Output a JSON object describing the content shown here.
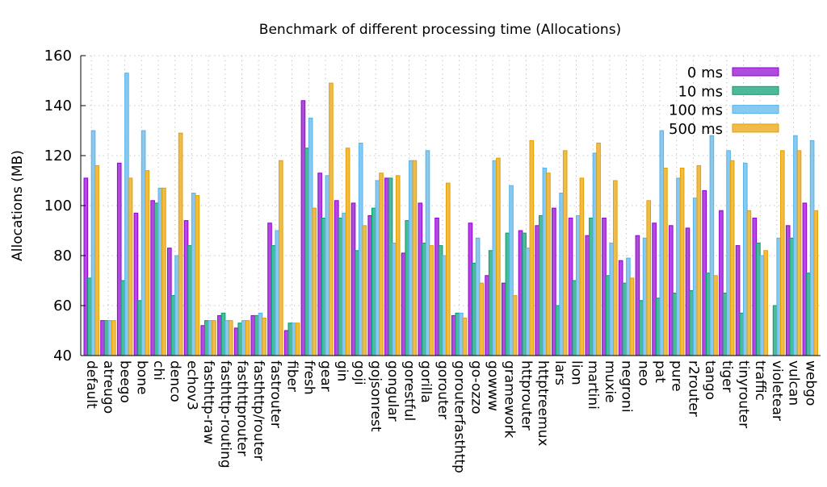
{
  "chart_data": {
    "type": "bar",
    "title": "Benchmark of different processing time (Allocations)",
    "xlabel": "",
    "ylabel": "Allocations (MB)",
    "ylim": [
      40,
      160
    ],
    "yticks": [
      40,
      60,
      80,
      100,
      120,
      140,
      160
    ],
    "grid": true,
    "legend_position": "top-right",
    "categories": [
      "default",
      "atreugo",
      "beego",
      "bone",
      "chi",
      "denco",
      "echov3",
      "fasthttp-raw",
      "fasthttp-routing",
      "fasthttprouter",
      "fasthttp/router",
      "fastrouter",
      "fiber",
      "fresh",
      "gear",
      "gin",
      "goji",
      "gojsonrest",
      "gongular",
      "gorestful",
      "gorilla",
      "gorouter",
      "gorouterfasthttp",
      "go-ozzo",
      "gowww",
      "gramework",
      "httprouter",
      "httptreemux",
      "lars",
      "lion",
      "martini",
      "muxie",
      "negroni",
      "neo",
      "pat",
      "pure",
      "r2router",
      "tango",
      "tiger",
      "tinyrouter",
      "traffic",
      "violetear",
      "vulcan",
      "webgo"
    ],
    "series": [
      {
        "name": "0 ms",
        "color": "#b14be0",
        "stroke": "#9400d3",
        "values": [
          111,
          54,
          117,
          97,
          102,
          83,
          94,
          52,
          56,
          51,
          56,
          93,
          50,
          142,
          113,
          102,
          101,
          96,
          111,
          81,
          101,
          95,
          56,
          93,
          72,
          69,
          90,
          92,
          99,
          95,
          88,
          95,
          78,
          88,
          93,
          92,
          91,
          106,
          98,
          84,
          95,
          null,
          92,
          101
        ]
      },
      {
        "name": "10 ms",
        "color": "#4dbb99",
        "stroke": "#009e73",
        "values": [
          71,
          54,
          70,
          62,
          101,
          64,
          84,
          54,
          57,
          53,
          56,
          84,
          53,
          123,
          95,
          95,
          82,
          99,
          111,
          94,
          85,
          84,
          57,
          77,
          82,
          89,
          89,
          96,
          60,
          70,
          95,
          72,
          69,
          62,
          63,
          65,
          66,
          73,
          65,
          57,
          85,
          60,
          87,
          73
        ]
      },
      {
        "name": "100 ms",
        "color": "#89c9ef",
        "stroke": "#56b4e9",
        "values": [
          130,
          54,
          153,
          130,
          107,
          80,
          105,
          54,
          54,
          54,
          57,
          90,
          53,
          135,
          112,
          97,
          125,
          110,
          85,
          118,
          122,
          80,
          57,
          87,
          118,
          108,
          83,
          115,
          105,
          96,
          121,
          85,
          79,
          87,
          130,
          111,
          103,
          128,
          122,
          117,
          80,
          87,
          128,
          126
        ]
      },
      {
        "name": "500 ms",
        "color": "#efbc4a",
        "stroke": "#e69f00",
        "values": [
          116,
          54,
          111,
          114,
          107,
          129,
          104,
          54,
          54,
          54,
          55,
          118,
          53,
          99,
          149,
          123,
          92,
          113,
          112,
          118,
          84,
          109,
          55,
          69,
          119,
          64,
          126,
          113,
          122,
          111,
          125,
          110,
          71,
          102,
          115,
          115,
          116,
          72,
          118,
          98,
          82,
          122,
          122,
          98
        ]
      }
    ]
  }
}
